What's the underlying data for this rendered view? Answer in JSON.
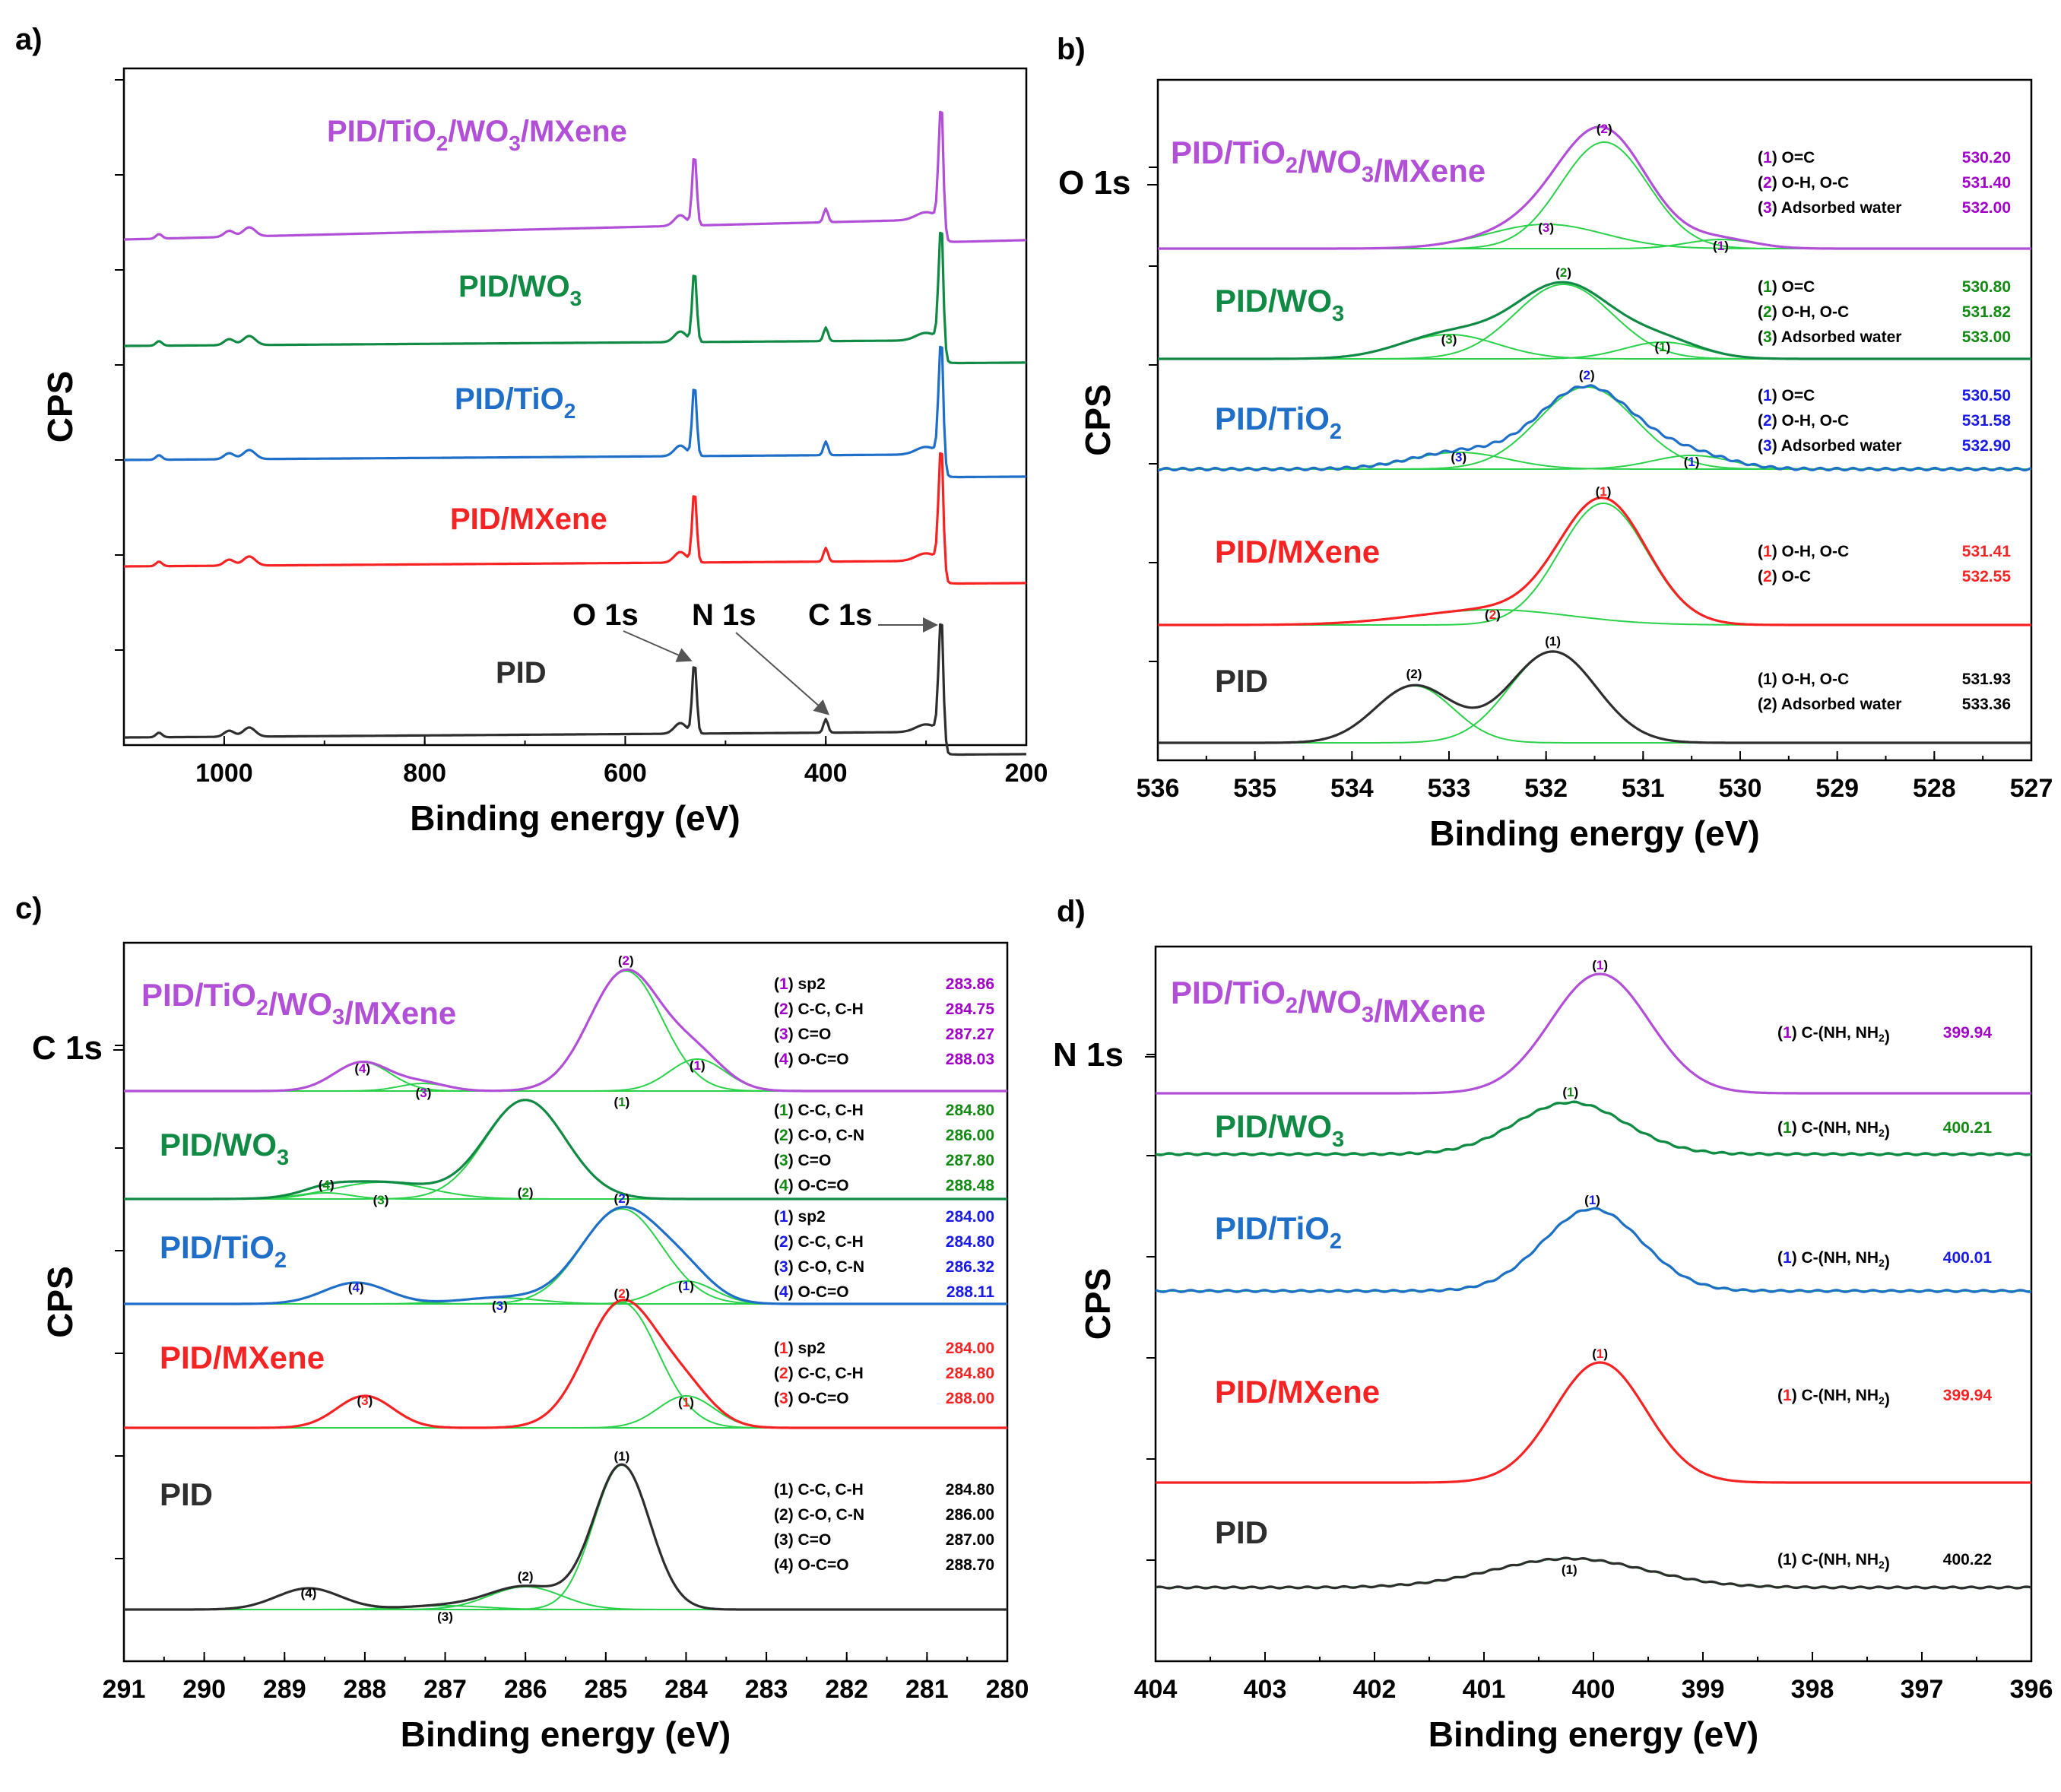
{
  "colors": {
    "PID": "#2e2e2e",
    "PID/MXene": "#f52323",
    "PID/TiO2": "#1f6fc9",
    "PID/WO3": "#108a45",
    "PID/TiO2/WO3/MXene": "#b14fd6",
    "component": "#2bd14a",
    "b_black": "#000000",
    "b_blue": "#1a1ae6",
    "b_green": "#138a13",
    "b_purple": "#a000c8"
  },
  "chart_data": [
    {
      "id": "a",
      "panel_label": "a)",
      "type": "line",
      "title": "",
      "xlabel": "Binding energy (eV)",
      "ylabel": "CPS",
      "xlim": [
        1100,
        200
      ],
      "xticks": [
        "1000",
        "800",
        "600",
        "400",
        "200"
      ],
      "series": [
        {
          "name": "PID",
          "label_main": "PID",
          "label_sub": "",
          "label_tail": "",
          "color_key": "PID",
          "offset": 0
        },
        {
          "name": "PID/MXene",
          "label_main": "PID/MXene",
          "label_sub": "",
          "label_tail": "",
          "color_key": "PID/MXene",
          "offset": 1
        },
        {
          "name": "PID/TiO2",
          "label_main": "PID/TiO",
          "label_sub": "2",
          "label_tail": "",
          "color_key": "PID/TiO2",
          "offset": 2
        },
        {
          "name": "PID/WO3",
          "label_main": "PID/WO",
          "label_sub": "3",
          "label_tail": "",
          "color_key": "PID/WO3",
          "offset": 3
        },
        {
          "name": "PID/TiO2/WO3/MXene",
          "label_main": "PID/TiO",
          "label_sub": "2",
          "label_tail": "/WO3/MXene",
          "color_key": "PID/TiO2/WO3/MXene",
          "offset": 4
        }
      ],
      "peaks": [
        {
          "name": "O 1s",
          "x": 531
        },
        {
          "name": "N 1s",
          "x": 400
        },
        {
          "name": "C 1s",
          "x": 285
        }
      ]
    },
    {
      "id": "b",
      "panel_label": "b)",
      "type": "line",
      "core_label": "O 1s",
      "xlabel": "Binding energy (eV)",
      "ylabel": "CPS",
      "xlim": [
        536,
        527
      ],
      "xticks": [
        "536",
        "535",
        "534",
        "533",
        "532",
        "531",
        "530",
        "529",
        "528",
        "527"
      ],
      "samples": [
        {
          "name": "PID/TiO2/WO3/MXene",
          "legend_color": "b_purple",
          "components": [
            {
              "label": "(1) O=C",
              "be": "530.20"
            },
            {
              "label": "(2) O-H, O-C",
              "be": "531.40"
            },
            {
              "label": "(3) Adsorbed water",
              "be": "532.00"
            }
          ]
        },
        {
          "name": "PID/WO3",
          "legend_color": "b_green",
          "components": [
            {
              "label": "(1) O=C",
              "be": "530.80"
            },
            {
              "label": "(2) O-H, O-C",
              "be": "531.82"
            },
            {
              "label": "(3) Adsorbed water",
              "be": "533.00"
            }
          ]
        },
        {
          "name": "PID/TiO2",
          "legend_color": "b_blue",
          "components": [
            {
              "label": "(1) O=C",
              "be": "530.50"
            },
            {
              "label": "(2) O-H, O-C",
              "be": "531.58"
            },
            {
              "label": "(3) Adsorbed water",
              "be": "532.90"
            }
          ]
        },
        {
          "name": "PID/MXene",
          "legend_color": "PID/MXene",
          "components": [
            {
              "label": "(1) O-H, O-C",
              "be": "531.41"
            },
            {
              "label": "(2) O-C",
              "be": "532.55"
            }
          ]
        },
        {
          "name": "PID",
          "legend_color": "b_black",
          "components": [
            {
              "label": "(1) O-H, O-C",
              "be": "531.93"
            },
            {
              "label": "(2) Adsorbed water",
              "be": "533.36"
            }
          ]
        }
      ]
    },
    {
      "id": "c",
      "panel_label": "c)",
      "type": "line",
      "core_label": "C 1s",
      "xlabel": "Binding energy (eV)",
      "ylabel": "CPS",
      "xlim": [
        291,
        280
      ],
      "xticks": [
        "291",
        "290",
        "289",
        "288",
        "287",
        "286",
        "285",
        "284",
        "283",
        "282",
        "281",
        "280"
      ],
      "samples": [
        {
          "name": "PID/TiO2/WO3/MXene",
          "legend_color": "b_purple",
          "components": [
            {
              "label": "(1) sp2",
              "be": "283.86"
            },
            {
              "label": "(2) C-C, C-H",
              "be": "284.75"
            },
            {
              "label": "(3) C=O",
              "be": "287.27"
            },
            {
              "label": "(4) O-C=O",
              "be": "288.03"
            }
          ]
        },
        {
          "name": "PID/WO3",
          "legend_color": "b_green",
          "components": [
            {
              "label": "(1) C-C, C-H",
              "be": "284.80"
            },
            {
              "label": "(2) C-O, C-N",
              "be": "286.00"
            },
            {
              "label": "(3) C=O",
              "be": "287.80"
            },
            {
              "label": "(4) O-C=O",
              "be": "288.48"
            }
          ]
        },
        {
          "name": "PID/TiO2",
          "legend_color": "b_blue",
          "components": [
            {
              "label": "(1) sp2",
              "be": "284.00"
            },
            {
              "label": "(2) C-C, C-H",
              "be": "284.80"
            },
            {
              "label": "(3) C-O, C-N",
              "be": "286.32"
            },
            {
              "label": "(4) O-C=O",
              "be": "288.11"
            }
          ]
        },
        {
          "name": "PID/MXene",
          "legend_color": "PID/MXene",
          "components": [
            {
              "label": "(1) sp2",
              "be": "284.00"
            },
            {
              "label": "(2) C-C, C-H",
              "be": "284.80"
            },
            {
              "label": "(3) O-C=O",
              "be": "288.00"
            }
          ]
        },
        {
          "name": "PID",
          "legend_color": "b_black",
          "components": [
            {
              "label": "(1) C-C, C-H",
              "be": "284.80"
            },
            {
              "label": "(2) C-O, C-N",
              "be": "286.00"
            },
            {
              "label": "(3) C=O",
              "be": "287.00"
            },
            {
              "label": "(4) O-C=O",
              "be": "288.70"
            }
          ]
        }
      ]
    },
    {
      "id": "d",
      "panel_label": "d)",
      "type": "line",
      "core_label": "N 1s",
      "xlabel": "Binding energy (eV)",
      "ylabel": "CPS",
      "xlim": [
        404,
        396
      ],
      "xticks": [
        "404",
        "403",
        "402",
        "401",
        "400",
        "399",
        "398",
        "397",
        "396"
      ],
      "samples": [
        {
          "name": "PID/TiO2/WO3/MXene",
          "legend_color": "b_purple",
          "components": [
            {
              "label": "(1) C-(NH, NH2)",
              "be": "399.94"
            }
          ]
        },
        {
          "name": "PID/WO3",
          "legend_color": "b_green",
          "components": [
            {
              "label": "(1) C-(NH, NH2)",
              "be": "400.21"
            }
          ]
        },
        {
          "name": "PID/TiO2",
          "legend_color": "b_blue",
          "components": [
            {
              "label": "(1) C-(NH, NH2)",
              "be": "400.01"
            }
          ]
        },
        {
          "name": "PID/MXene",
          "legend_color": "PID/MXene",
          "components": [
            {
              "label": "(1) C-(NH, NH2)",
              "be": "399.94"
            }
          ]
        },
        {
          "name": "PID",
          "legend_color": "b_black",
          "components": [
            {
              "label": "(1) C-(NH, NH2)",
              "be": "400.22"
            }
          ]
        }
      ]
    }
  ]
}
